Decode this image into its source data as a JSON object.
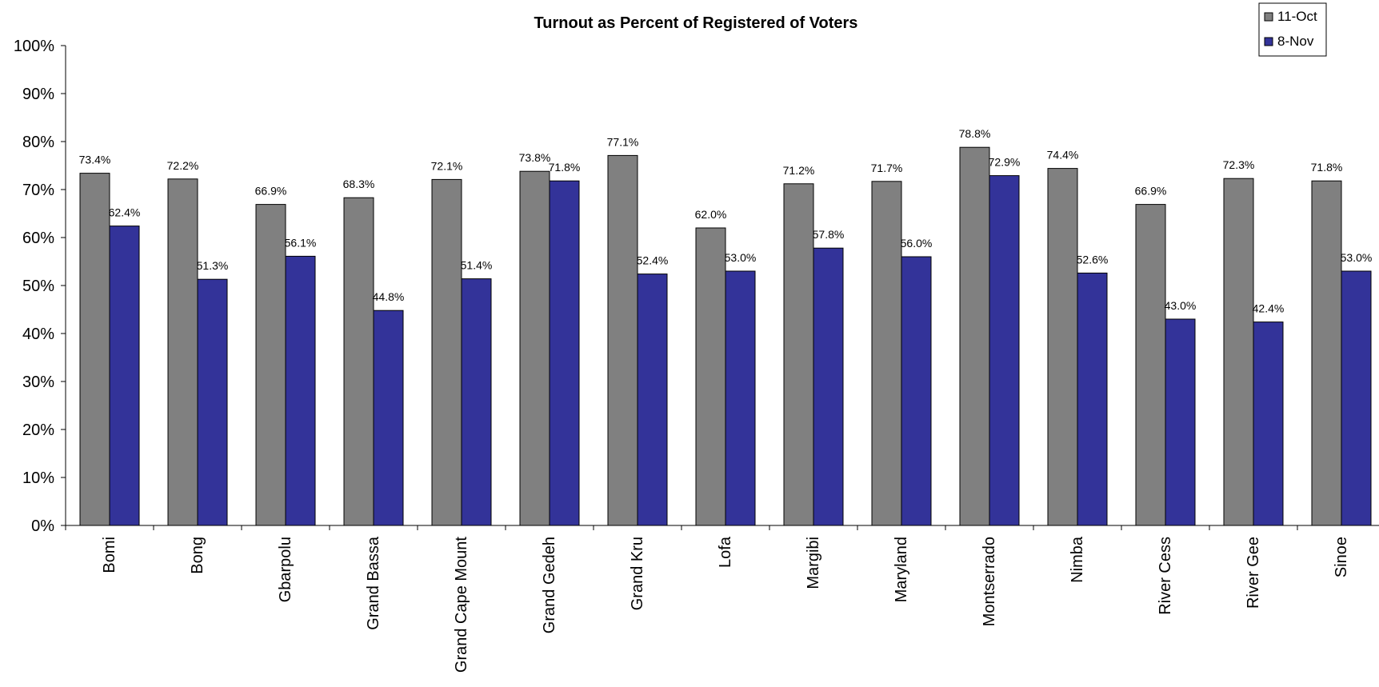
{
  "chart_data": {
    "type": "bar",
    "title": "Turnout as Percent of Registered of Voters",
    "xlabel": "",
    "ylabel": "",
    "ylim": [
      0,
      100
    ],
    "yticks": [
      "0%",
      "10%",
      "20%",
      "30%",
      "40%",
      "50%",
      "60%",
      "70%",
      "80%",
      "90%",
      "100%"
    ],
    "grid": false,
    "legend_position": "top-right",
    "categories": [
      "Bomi",
      "Bong",
      "Gbarpolu",
      "Grand Bassa",
      "Grand Cape Mount",
      "Grand Gedeh",
      "Grand Kru",
      "Lofa",
      "Margibi",
      "Maryland",
      "Montserrado",
      "Nimba",
      "River Cess",
      "River Gee",
      "Sinoe"
    ],
    "series": [
      {
        "name": "11-Oct",
        "color": "#808080",
        "values": [
          73.4,
          72.2,
          66.9,
          68.3,
          72.1,
          73.8,
          77.1,
          62.0,
          71.2,
          71.7,
          78.8,
          74.4,
          66.9,
          72.3,
          71.8
        ],
        "labels": [
          "73.4%",
          "72.2%",
          "66.9%",
          "68.3%",
          "72.1%",
          "73.8%",
          "77.1%",
          "62.0%",
          "71.2%",
          "71.7%",
          "78.8%",
          "74.4%",
          "66.9%",
          "72.3%",
          "71.8%"
        ]
      },
      {
        "name": "8-Nov",
        "color": "#333399",
        "values": [
          62.4,
          51.3,
          56.1,
          44.8,
          51.4,
          71.8,
          52.4,
          53.0,
          57.8,
          56.0,
          72.9,
          52.6,
          43.0,
          42.4,
          53.0
        ],
        "labels": [
          "62.4%",
          "51.3%",
          "56.1%",
          "44.8%",
          "51.4%",
          "71.8%",
          "52.4%",
          "53.0%",
          "57.8%",
          "56.0%",
          "72.9%",
          "52.6%",
          "43.0%",
          "42.4%",
          "53.0%"
        ]
      }
    ]
  }
}
